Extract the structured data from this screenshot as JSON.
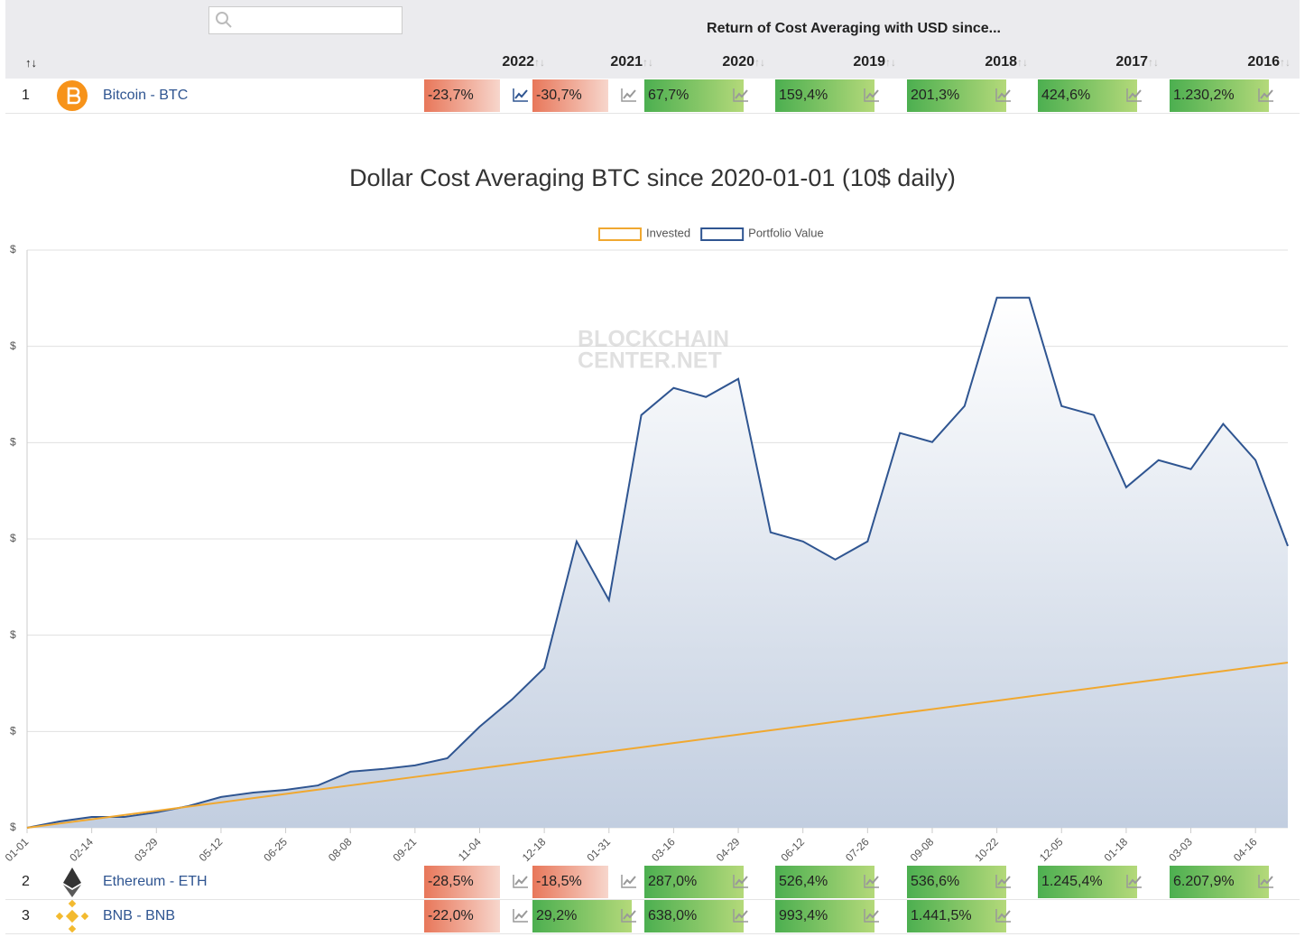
{
  "header": {
    "title": "Return of Cost Averaging with USD since...",
    "rank_sort": "↑↓",
    "sort_icon": "↑↓",
    "years": [
      "2022",
      "2021",
      "2020",
      "2019",
      "2018",
      "2017",
      "2016"
    ]
  },
  "rows": [
    {
      "rank": "1",
      "name": "Bitcoin - BTC",
      "returns": [
        "-23,7%",
        "-30,7%",
        "67,7%",
        "159,4%",
        "201,3%",
        "424,6%",
        "1.230,2%"
      ]
    },
    {
      "rank": "2",
      "name": "Ethereum - ETH",
      "returns": [
        "-28,5%",
        "-18,5%",
        "287,0%",
        "526,4%",
        "536,6%",
        "1.245,4%",
        "6.207,9%"
      ]
    },
    {
      "rank": "3",
      "name": "BNB - BNB",
      "returns": [
        "-22,0%",
        "29,2%",
        "638,0%",
        "993,4%",
        "1.441,5%"
      ]
    }
  ],
  "chart_data": {
    "type": "line",
    "title": "Dollar Cost Averaging BTC since 2020-01-01 (10$ daily)",
    "watermark": [
      "BLOCKCHAIN",
      "CENTER.NET"
    ],
    "categories": [
      "01-01",
      null,
      "02-14",
      null,
      "03-29",
      null,
      "05-12",
      null,
      "06-25",
      null,
      "08-08",
      null,
      "09-21",
      null,
      "11-04",
      null,
      "12-18",
      null,
      "01-31",
      null,
      "03-16",
      null,
      "04-29",
      null,
      "06-12",
      null,
      "07-26",
      null,
      "09-08",
      null,
      "10-22",
      null,
      "12-05",
      null,
      "01-18",
      null,
      "03-03",
      null,
      "04-16",
      null
    ],
    "series": [
      {
        "name": "Invested",
        "color": "#f0a830",
        "values": [
          0,
          220,
          440,
          660,
          880,
          1100,
          1320,
          1540,
          1760,
          1980,
          2200,
          2420,
          2640,
          2860,
          3080,
          3300,
          3520,
          3740,
          3960,
          4180,
          4400,
          4620,
          4840,
          5060,
          5280,
          5500,
          5720,
          5940,
          6160,
          6380,
          6600,
          6820,
          7040,
          7260,
          7480,
          7700,
          7920,
          8140,
          8360,
          8580
        ]
      },
      {
        "name": "Portfolio Value",
        "color": "#2f5591",
        "area": true,
        "values": [
          0,
          330,
          560,
          560,
          800,
          1130,
          1600,
          1830,
          1970,
          2200,
          2910,
          3050,
          3240,
          3610,
          5250,
          6660,
          8300,
          14870,
          11820,
          21430,
          22840,
          22370,
          23310,
          15340,
          14870,
          13930,
          14870,
          20500,
          20030,
          21900,
          27530,
          27530,
          21900,
          21430,
          17680,
          19090,
          18620,
          20970,
          19090,
          14630
        ]
      }
    ],
    "ylim": [
      0,
      30000
    ],
    "yticks": [
      {
        "value": 0,
        "label": "$"
      },
      {
        "value": 5000,
        "label": "$"
      },
      {
        "value": 10000,
        "label": "$"
      },
      {
        "value": 15000,
        "label": "$"
      },
      {
        "value": 20000,
        "label": "$"
      },
      {
        "value": 25000,
        "label": "$"
      },
      {
        "value": 30000,
        "label": "$"
      }
    ],
    "grid": true
  }
}
